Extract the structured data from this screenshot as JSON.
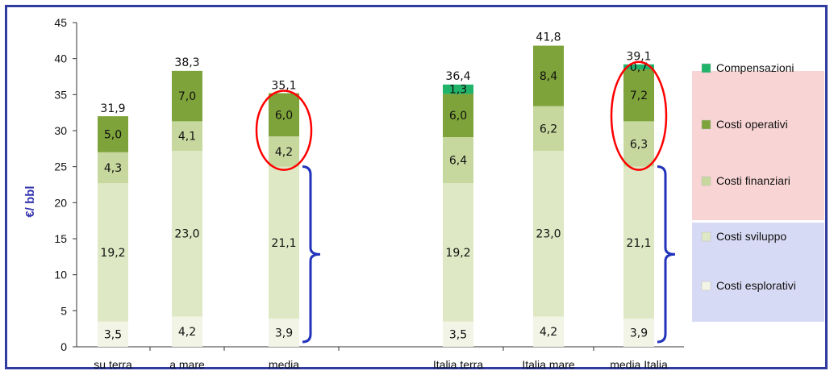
{
  "colors": {
    "frame": "#2f3b9e",
    "highlight_red": "#ff0000",
    "brace_blue": "#2233bb",
    "legend_pink_bg": "#f7c6c6",
    "legend_blue_bg": "#c9cdf0",
    "ylabel": "#3535b0"
  },
  "chart_data": {
    "type": "bar",
    "stacked": true,
    "title": "",
    "xlabel": "",
    "ylabel": "€/ bbl",
    "ylim": [
      0,
      45
    ],
    "yticks": [
      0,
      5,
      10,
      15,
      20,
      25,
      30,
      35,
      40,
      45
    ],
    "ytick_labels": [
      "0",
      "5",
      "10",
      "15",
      "20",
      "25",
      "30",
      "35",
      "40",
      "45"
    ],
    "grid": false,
    "legend_position": "right",
    "categories": [
      "su terra",
      "a mare",
      "media",
      "Italia terra",
      "Italia mare",
      "media Italia"
    ],
    "series": [
      {
        "name": "Costi esplorativi",
        "color": "#f2f4e6",
        "values": [
          3.5,
          4.2,
          3.9,
          3.5,
          4.2,
          3.9
        ],
        "labels": [
          "3,5",
          "4,2",
          "3,9",
          "3,5",
          "4,2",
          "3,9"
        ]
      },
      {
        "name": "Costi sviluppo",
        "color": "#dfe8c4",
        "values": [
          19.2,
          23.0,
          21.1,
          19.2,
          23.0,
          21.1
        ],
        "labels": [
          "19,2",
          "23,0",
          "21,1",
          "19,2",
          "23,0",
          "21,1"
        ]
      },
      {
        "name": "Costi finanziari",
        "color": "#c6d89e",
        "values": [
          4.3,
          4.1,
          4.2,
          6.4,
          6.2,
          6.3
        ],
        "labels": [
          "4,3",
          "4,1",
          "4,2",
          "6,4",
          "6,2",
          "6,3"
        ]
      },
      {
        "name": "Costi operativi",
        "color": "#7ea33a",
        "values": [
          5.0,
          7.0,
          6.0,
          6.0,
          8.4,
          7.2
        ],
        "labels": [
          "5,0",
          "7,0",
          "6,0",
          "6,0",
          "8,4",
          "7,2"
        ]
      },
      {
        "name": "Compensazioni",
        "color": "#20b36a",
        "values": [
          0,
          0,
          0,
          1.3,
          0,
          0.7
        ],
        "labels": [
          "",
          "",
          "",
          "1,3",
          "",
          "0,7"
        ]
      }
    ],
    "totals": [
      31.9,
      38.3,
      35.1,
      36.4,
      41.8,
      39.1
    ],
    "total_labels": [
      "31,9",
      "38,3",
      "35,1",
      "36,4",
      "41,8",
      "39,1"
    ],
    "legend_order": [
      "Compensazioni",
      "Costi operativi",
      "Costi finanziari",
      "Costi sviluppo",
      "Costi esplorativi"
    ],
    "annotations": {
      "red_ellipse_categories": [
        "media",
        "media Italia"
      ],
      "blue_brace_categories": [
        "media",
        "media Italia"
      ]
    }
  }
}
